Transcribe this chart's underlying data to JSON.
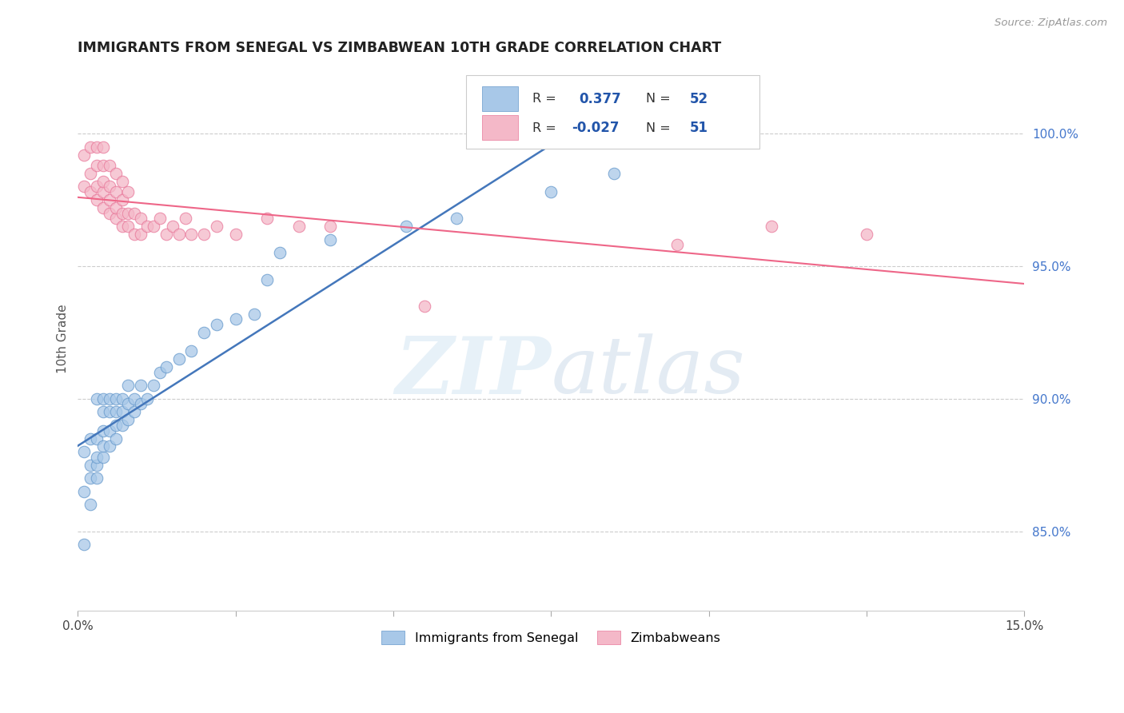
{
  "title": "IMMIGRANTS FROM SENEGAL VS ZIMBABWEAN 10TH GRADE CORRELATION CHART",
  "source": "Source: ZipAtlas.com",
  "ylabel": "10th Grade",
  "legend_blue_r": "0.377",
  "legend_blue_n": "52",
  "legend_pink_r": "-0.027",
  "legend_pink_n": "51",
  "legend_label_blue": "Immigrants from Senegal",
  "legend_label_pink": "Zimbabweans",
  "blue_color": "#a8c8e8",
  "pink_color": "#f4b8c8",
  "blue_edge_color": "#6699cc",
  "pink_edge_color": "#e8789a",
  "blue_line_color": "#4477bb",
  "pink_line_color": "#ee6688",
  "watermark_zip": "ZIP",
  "watermark_atlas": "atlas",
  "xlim": [
    0.0,
    0.15
  ],
  "ylim": [
    0.82,
    1.025
  ],
  "right_ytick_vals": [
    0.85,
    0.9,
    0.95,
    1.0
  ],
  "right_ytick_labels": [
    "85.0%",
    "90.0%",
    "95.0%",
    "100.0%"
  ],
  "blue_x": [
    0.001,
    0.001,
    0.001,
    0.002,
    0.002,
    0.002,
    0.002,
    0.003,
    0.003,
    0.003,
    0.003,
    0.003,
    0.004,
    0.004,
    0.004,
    0.004,
    0.004,
    0.005,
    0.005,
    0.005,
    0.005,
    0.006,
    0.006,
    0.006,
    0.006,
    0.007,
    0.007,
    0.007,
    0.008,
    0.008,
    0.008,
    0.009,
    0.009,
    0.01,
    0.01,
    0.011,
    0.012,
    0.013,
    0.014,
    0.016,
    0.018,
    0.02,
    0.022,
    0.025,
    0.028,
    0.03,
    0.032,
    0.04,
    0.052,
    0.06,
    0.075,
    0.085
  ],
  "blue_y": [
    0.845,
    0.865,
    0.88,
    0.86,
    0.87,
    0.875,
    0.885,
    0.87,
    0.875,
    0.878,
    0.885,
    0.9,
    0.878,
    0.882,
    0.888,
    0.895,
    0.9,
    0.882,
    0.888,
    0.895,
    0.9,
    0.885,
    0.89,
    0.895,
    0.9,
    0.89,
    0.895,
    0.9,
    0.892,
    0.898,
    0.905,
    0.895,
    0.9,
    0.898,
    0.905,
    0.9,
    0.905,
    0.91,
    0.912,
    0.915,
    0.918,
    0.925,
    0.928,
    0.93,
    0.932,
    0.945,
    0.955,
    0.96,
    0.965,
    0.968,
    0.978,
    0.985
  ],
  "pink_x": [
    0.001,
    0.001,
    0.002,
    0.002,
    0.002,
    0.003,
    0.003,
    0.003,
    0.003,
    0.004,
    0.004,
    0.004,
    0.004,
    0.004,
    0.005,
    0.005,
    0.005,
    0.005,
    0.006,
    0.006,
    0.006,
    0.006,
    0.007,
    0.007,
    0.007,
    0.007,
    0.008,
    0.008,
    0.008,
    0.009,
    0.009,
    0.01,
    0.01,
    0.011,
    0.012,
    0.013,
    0.014,
    0.015,
    0.016,
    0.017,
    0.018,
    0.02,
    0.022,
    0.025,
    0.03,
    0.035,
    0.04,
    0.055,
    0.095,
    0.11,
    0.125
  ],
  "pink_y": [
    0.98,
    0.992,
    0.978,
    0.985,
    0.995,
    0.975,
    0.98,
    0.988,
    0.995,
    0.972,
    0.978,
    0.982,
    0.988,
    0.995,
    0.97,
    0.975,
    0.98,
    0.988,
    0.968,
    0.972,
    0.978,
    0.985,
    0.965,
    0.97,
    0.975,
    0.982,
    0.965,
    0.97,
    0.978,
    0.962,
    0.97,
    0.962,
    0.968,
    0.965,
    0.965,
    0.968,
    0.962,
    0.965,
    0.962,
    0.968,
    0.962,
    0.962,
    0.965,
    0.962,
    0.968,
    0.965,
    0.965,
    0.935,
    0.958,
    0.965,
    0.962
  ]
}
